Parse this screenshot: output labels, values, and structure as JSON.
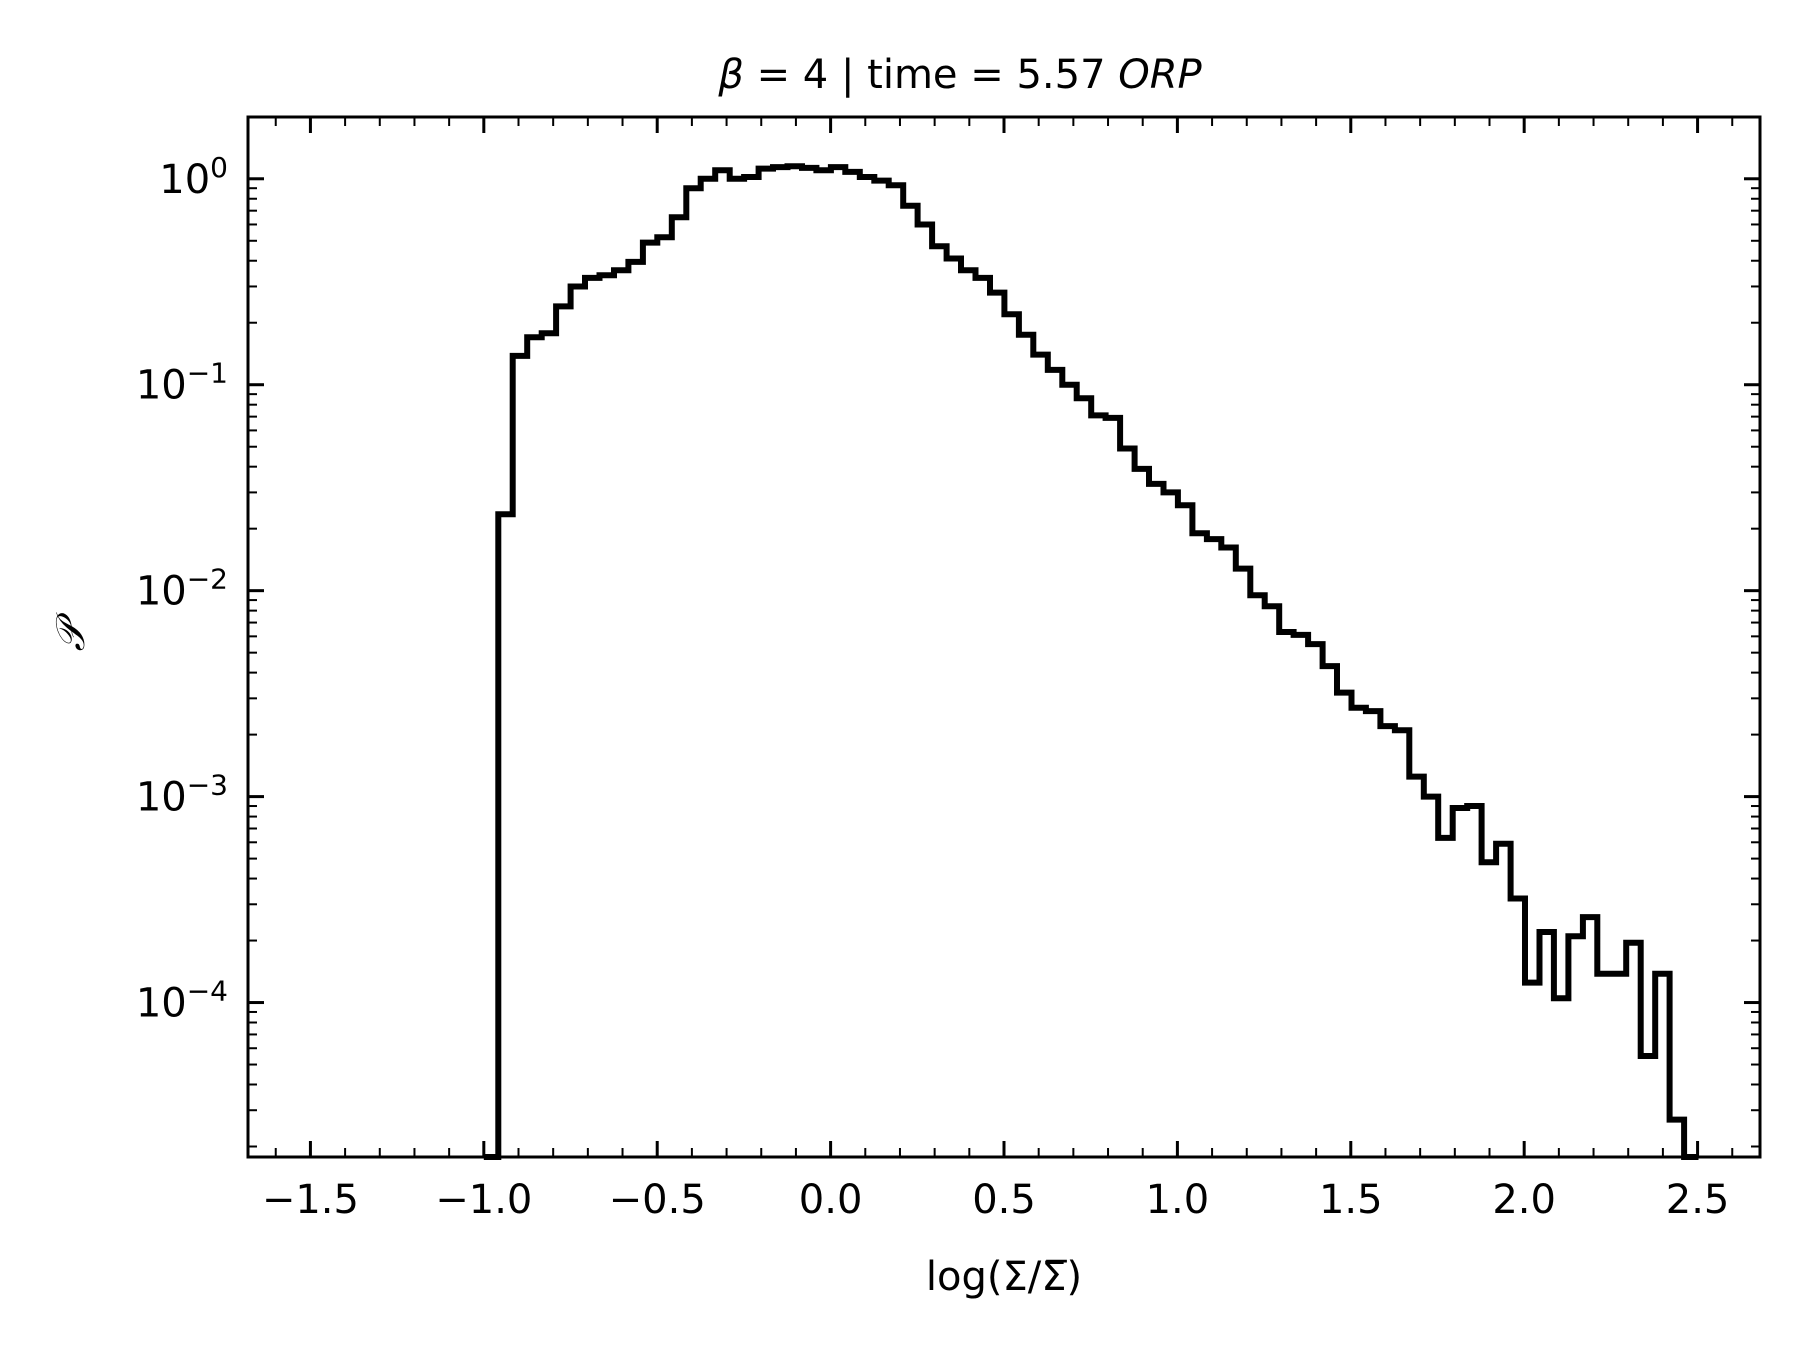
{
  "chart_data": {
    "type": "step",
    "title": {
      "prefix": "β",
      "middle": " = 4 | time = 5.57 ",
      "unit": "ORP"
    },
    "xlabel": "log(Σ/Σ̅)",
    "ylabel": "𝒫",
    "xlim": [
      -1.68,
      2.68
    ],
    "ylim_log10": [
      -4.75,
      0.3
    ],
    "yscale": "log",
    "grid": false,
    "legend": false,
    "x_ticks": [
      -1.5,
      -1.0,
      -0.5,
      0.0,
      0.5,
      1.0,
      1.5,
      2.0,
      2.5
    ],
    "x_tick_labels": [
      "−1.5",
      "−1.0",
      "−0.5",
      "0.0",
      "0.5",
      "1.0",
      "1.5",
      "2.0",
      "2.5"
    ],
    "y_ticks": [
      {
        "log10": 0,
        "base": "10",
        "exp": "0"
      },
      {
        "log10": -1,
        "base": "10",
        "exp": "−1"
      },
      {
        "log10": -2,
        "base": "10",
        "exp": "−2"
      },
      {
        "log10": -3,
        "base": "10",
        "exp": "−3"
      },
      {
        "log10": -4,
        "base": "10",
        "exp": "−4"
      }
    ],
    "bin_start": -1.0,
    "bin_width": 0.0417,
    "values": [
      1e-06,
      0.0235,
      0.138,
      0.17,
      0.178,
      0.24,
      0.3,
      0.33,
      0.34,
      0.36,
      0.395,
      0.49,
      0.52,
      0.65,
      0.9,
      1.0,
      1.1,
      1.0,
      1.02,
      1.12,
      1.14,
      1.15,
      1.13,
      1.1,
      1.14,
      1.08,
      1.02,
      0.98,
      0.93,
      0.74,
      0.6,
      0.47,
      0.41,
      0.36,
      0.33,
      0.28,
      0.22,
      0.175,
      0.14,
      0.118,
      0.1,
      0.086,
      0.071,
      0.069,
      0.049,
      0.039,
      0.033,
      0.03,
      0.026,
      0.019,
      0.0178,
      0.0162,
      0.0128,
      0.0095,
      0.0084,
      0.0063,
      0.0061,
      0.0055,
      0.0043,
      0.0032,
      0.0027,
      0.0026,
      0.0022,
      0.0021,
      0.00125,
      0.001,
      0.00063,
      0.00088,
      0.0009,
      0.00048,
      0.00059,
      0.00032,
      0.000125,
      0.00022,
      0.000105,
      0.00021,
      0.00026,
      0.000138,
      0.000138,
      0.000195,
      5.5e-05,
      0.000138,
      2.7e-05,
      1e-06
    ]
  }
}
